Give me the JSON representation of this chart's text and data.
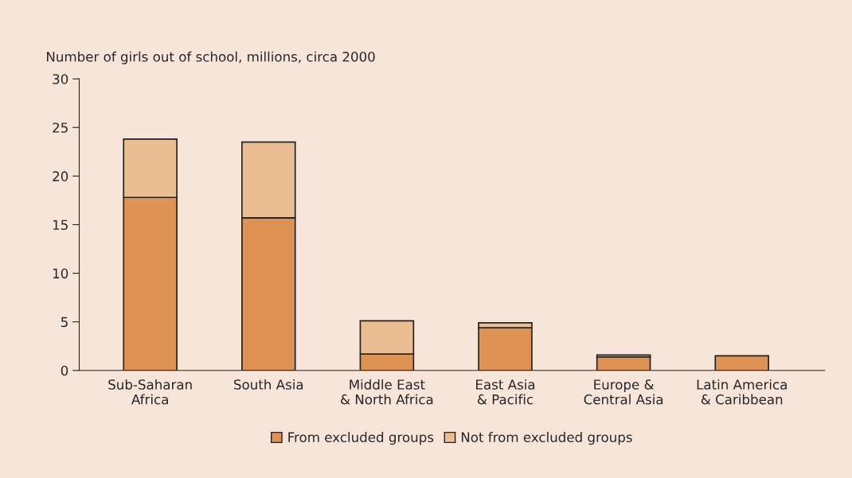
{
  "chart_data": {
    "type": "bar",
    "stacked": true,
    "ylabel": "Number of girls out of school, millions, circa 2000",
    "categories": [
      "Sub-Saharan\nAfrica",
      "South Asia",
      "Middle East\n& North Africa",
      "East Asia\n& Pacific",
      "Europe &\nCentral Asia",
      "Latin America\n& Caribbean"
    ],
    "series": [
      {
        "name": "From excluded groups",
        "color": "#de9354",
        "values": [
          17.8,
          15.7,
          1.7,
          4.4,
          1.4,
          1.5
        ]
      },
      {
        "name": "Not from excluded groups",
        "color": "#ebbd93",
        "values": [
          6.0,
          7.8,
          3.4,
          0.5,
          0.2,
          null
        ]
      }
    ],
    "ylim": [
      0,
      30
    ],
    "yticks": [
      0,
      5,
      10,
      15,
      20,
      25,
      30
    ],
    "grid": false,
    "legend": "bottom"
  }
}
